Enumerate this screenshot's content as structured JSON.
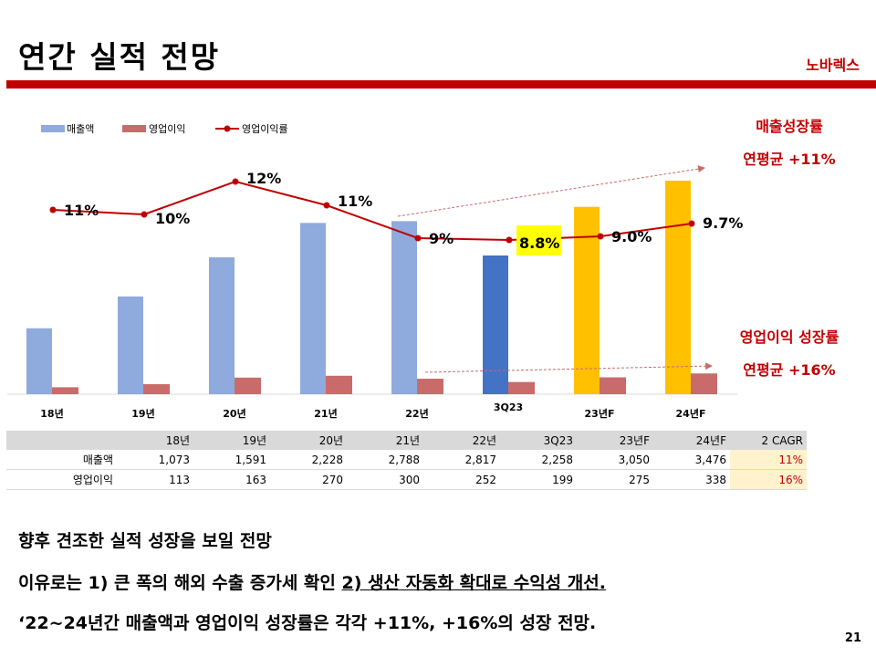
{
  "header": {
    "title": "연간 실적 전망",
    "company": "노바렉스"
  },
  "annotations": {
    "revenue_growth": {
      "line1": "매출성장률",
      "line2": "연평균 +11%"
    },
    "op_growth": {
      "line1": "영업이익 성장률",
      "line2": "연평균 +16%"
    }
  },
  "colors": {
    "revenue": "#8faadc",
    "revenue_highlight": "#4472c4",
    "revenue_forecast": "#ffc000",
    "op_income": "#c96b6b",
    "margin_line": "#c00000",
    "accent": "#c00000",
    "highlight_label": "#ffff00"
  },
  "chart_data": {
    "type": "bar",
    "title": "",
    "categories": [
      "18년",
      "19년",
      "20년",
      "21년",
      "22년",
      "3Q23",
      "23년F",
      "24년F"
    ],
    "series": [
      {
        "name": "매출액",
        "type": "bar",
        "values": [
          1073,
          1591,
          2228,
          2788,
          2817,
          2258,
          3050,
          3476
        ],
        "bar_colors": [
          "revenue",
          "revenue",
          "revenue",
          "revenue",
          "revenue",
          "revenue_highlight",
          "revenue_forecast",
          "revenue_forecast"
        ]
      },
      {
        "name": "영업이익",
        "type": "bar",
        "values": [
          113,
          163,
          270,
          300,
          252,
          199,
          275,
          338
        ]
      },
      {
        "name": "영업이익률",
        "type": "line",
        "values": [
          11,
          10,
          12,
          11,
          9,
          8.8,
          9.0,
          9.7
        ],
        "labels": [
          "11%",
          "10%",
          "12%",
          "11%",
          "9%",
          "8.8%",
          "9.0%",
          "9.7%"
        ],
        "highlighted_label_index": 5
      }
    ],
    "legend": {
      "position": "top-left",
      "entries": [
        "매출액",
        "영업이익",
        "영업이익률"
      ]
    },
    "trend_arrows": [
      {
        "name": "revenue-trend",
        "from_category": "22년",
        "to_category": "24년F"
      },
      {
        "name": "op-income-trend",
        "from_category": "22년",
        "to_category": "24년F"
      }
    ],
    "grid": false,
    "xlabel": "",
    "ylabel": ""
  },
  "table": {
    "headers": [
      "",
      "18년",
      "19년",
      "20년",
      "21년",
      "22년",
      "3Q23",
      "23년F",
      "24년F",
      "2 CAGR"
    ],
    "rows": [
      {
        "label": "매출액",
        "values": [
          "1,073",
          "1,591",
          "2,228",
          "2,788",
          "2,817",
          "2,258",
          "3,050",
          "3,476"
        ],
        "cagr": "11%"
      },
      {
        "label": "영업이익",
        "values": [
          "113",
          "163",
          "270",
          "300",
          "252",
          "199",
          "275",
          "338"
        ],
        "cagr": "16%"
      }
    ]
  },
  "body": {
    "line1": "향후 견조한 실적 성장을 보일 전망",
    "line2_plain": "이유로는 1) 큰 폭의 해외 수출 증가세 확인 ",
    "line2_underlined": "2) 생산 자동화 확대로 수익성 개선.",
    "line3": "‘22~24년간 매출액과 영업이익 성장률은 각각 +11%, +16%의 성장 전망."
  },
  "page_number": "21"
}
